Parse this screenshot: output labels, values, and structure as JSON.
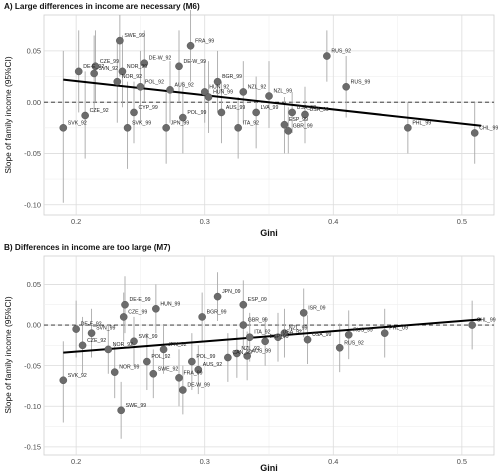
{
  "chart_data": [
    {
      "type": "scatter",
      "title": "A) Large differences in income are necessary (M6)",
      "xlabel": "Gini",
      "ylabel": "Slope of family income (95%CI)",
      "xlim": [
        0.175,
        0.525
      ],
      "ylim": [
        -0.11,
        0.085
      ],
      "xticks": [
        0.2,
        0.3,
        0.4,
        0.5
      ],
      "xtick_labels": [
        "0.2",
        "0.3",
        "0.4",
        "0.5"
      ],
      "yticks": [
        -0.1,
        -0.05,
        0.0,
        0.05
      ],
      "ytick_labels": [
        "-0.10",
        "-0.05",
        "0.00",
        "0.05"
      ],
      "reference_line_y": 0,
      "trend_line": {
        "x": [
          0.19,
          0.515
        ],
        "y": [
          0.022,
          -0.023
        ]
      },
      "grid": true,
      "points": [
        {
          "label": "SVK_92",
          "x": 0.19,
          "y": -0.025,
          "lo": -0.098,
          "hi": 0.05
        },
        {
          "label": "DE-E_92",
          "x": 0.202,
          "y": 0.03,
          "lo": -0.01,
          "hi": 0.07
        },
        {
          "label": "CZE_92",
          "x": 0.207,
          "y": -0.013,
          "lo": -0.055,
          "hi": 0.03
        },
        {
          "label": "CZE_99",
          "x": 0.215,
          "y": 0.035,
          "lo": 0.0,
          "hi": 0.07
        },
        {
          "label": "SVN_92",
          "x": 0.214,
          "y": 0.028,
          "lo": -0.01,
          "hi": 0.065
        },
        {
          "label": "NOR_92",
          "x": 0.232,
          "y": 0.02,
          "lo": -0.02,
          "hi": 0.06
        },
        {
          "label": "NOR_99",
          "x": 0.236,
          "y": 0.03,
          "lo": -0.005,
          "hi": 0.065
        },
        {
          "label": "SWE_99",
          "x": 0.234,
          "y": 0.06,
          "lo": 0.025,
          "hi": 0.085
        },
        {
          "label": "SVK_99",
          "x": 0.24,
          "y": -0.025,
          "lo": -0.065,
          "hi": 0.02
        },
        {
          "label": "CYP_99",
          "x": 0.245,
          "y": -0.01,
          "lo": -0.04,
          "hi": 0.02
        },
        {
          "label": "POL_92",
          "x": 0.25,
          "y": 0.015,
          "lo": -0.02,
          "hi": 0.05
        },
        {
          "label": "DE-W_92",
          "x": 0.253,
          "y": 0.038,
          "lo": 0.0,
          "hi": 0.07
        },
        {
          "label": "JPN_99",
          "x": 0.27,
          "y": -0.025,
          "lo": -0.06,
          "hi": 0.01
        },
        {
          "label": "AUS_92",
          "x": 0.273,
          "y": 0.012,
          "lo": -0.02,
          "hi": 0.04
        },
        {
          "label": "DE-W_99",
          "x": 0.28,
          "y": 0.035,
          "lo": 0.0,
          "hi": 0.07
        },
        {
          "label": "POL_99",
          "x": 0.283,
          "y": -0.015,
          "lo": -0.05,
          "hi": 0.02
        },
        {
          "label": "FRA_99",
          "x": 0.289,
          "y": 0.055,
          "lo": 0.02,
          "hi": 0.09
        },
        {
          "label": "HUN_92",
          "x": 0.3,
          "y": 0.01,
          "lo": -0.02,
          "hi": 0.04
        },
        {
          "label": "HUN_99",
          "x": 0.303,
          "y": 0.005,
          "lo": -0.03,
          "hi": 0.04
        },
        {
          "label": "BGR_99",
          "x": 0.31,
          "y": 0.02,
          "lo": -0.01,
          "hi": 0.05
        },
        {
          "label": "AUS_99",
          "x": 0.313,
          "y": -0.01,
          "lo": -0.04,
          "hi": 0.02
        },
        {
          "label": "ITA_92",
          "x": 0.326,
          "y": -0.025,
          "lo": -0.055,
          "hi": 0.005
        },
        {
          "label": "NZL_92",
          "x": 0.33,
          "y": 0.01,
          "lo": -0.02,
          "hi": 0.04
        },
        {
          "label": "LVA_99",
          "x": 0.34,
          "y": -0.01,
          "lo": -0.045,
          "hi": 0.025
        },
        {
          "label": "NZL_99",
          "x": 0.35,
          "y": 0.006,
          "lo": -0.025,
          "hi": 0.04
        },
        {
          "label": "ESP_99",
          "x": 0.362,
          "y": -0.022,
          "lo": -0.05,
          "hi": 0.005
        },
        {
          "label": "GBR_99",
          "x": 0.365,
          "y": -0.028,
          "lo": -0.05,
          "hi": -0.005
        },
        {
          "label": "USA_92",
          "x": 0.368,
          "y": -0.01,
          "lo": -0.03,
          "hi": 0.01
        },
        {
          "label": "USA_99",
          "x": 0.378,
          "y": -0.012,
          "lo": -0.04,
          "hi": 0.015
        },
        {
          "label": "RUS_92",
          "x": 0.395,
          "y": 0.045,
          "lo": 0.02,
          "hi": 0.07
        },
        {
          "label": "RUS_99",
          "x": 0.41,
          "y": 0.015,
          "lo": -0.015,
          "hi": 0.045
        },
        {
          "label": "PHL_99",
          "x": 0.458,
          "y": -0.025,
          "lo": -0.05,
          "hi": 0.0
        },
        {
          "label": "CHL_99",
          "x": 0.51,
          "y": -0.03,
          "lo": -0.06,
          "hi": 0.0
        }
      ]
    },
    {
      "type": "scatter",
      "title": "B) Differences in income are too large (M7)",
      "xlabel": "Gini",
      "ylabel": "Slope of family income (95%CI)",
      "xlim": [
        0.175,
        0.525
      ],
      "ylim": [
        -0.16,
        0.085
      ],
      "xticks": [
        0.2,
        0.3,
        0.4,
        0.5
      ],
      "xtick_labels": [
        "0.2",
        "0.3",
        "0.4",
        "0.5"
      ],
      "yticks": [
        -0.15,
        -0.1,
        -0.05,
        0.0,
        0.05
      ],
      "ytick_labels": [
        "-0.15",
        "-0.10",
        "-0.05",
        "0.00",
        "0.05"
      ],
      "reference_line_y": 0,
      "trend_line": {
        "x": [
          0.19,
          0.515
        ],
        "y": [
          -0.034,
          0.007
        ]
      },
      "grid": true,
      "points": [
        {
          "label": "SVK_92",
          "x": 0.19,
          "y": -0.068,
          "lo": -0.12,
          "hi": -0.02
        },
        {
          "label": "DE-E_92",
          "x": 0.2,
          "y": -0.005,
          "lo": -0.04,
          "hi": 0.03
        },
        {
          "label": "CZE_92",
          "x": 0.205,
          "y": -0.025,
          "lo": -0.06,
          "hi": 0.01
        },
        {
          "label": "SVN_99",
          "x": 0.212,
          "y": -0.01,
          "lo": -0.04,
          "hi": 0.02
        },
        {
          "label": "NOR_92",
          "x": 0.225,
          "y": -0.03,
          "lo": -0.06,
          "hi": 0.0
        },
        {
          "label": "NOR_99",
          "x": 0.23,
          "y": -0.058,
          "lo": -0.09,
          "hi": -0.025
        },
        {
          "label": "SWE_99",
          "x": 0.235,
          "y": -0.105,
          "lo": -0.14,
          "hi": -0.07
        },
        {
          "label": "CZE_99",
          "x": 0.237,
          "y": 0.01,
          "lo": -0.02,
          "hi": 0.04
        },
        {
          "label": "DE-E_99",
          "x": 0.238,
          "y": 0.025,
          "lo": -0.01,
          "hi": 0.06
        },
        {
          "label": "SVK_99",
          "x": 0.245,
          "y": -0.02,
          "lo": -0.05,
          "hi": 0.01
        },
        {
          "label": "POL_92",
          "x": 0.255,
          "y": -0.045,
          "lo": -0.08,
          "hi": -0.01
        },
        {
          "label": "SWE_92",
          "x": 0.26,
          "y": -0.06,
          "lo": -0.09,
          "hi": -0.03
        },
        {
          "label": "HUN_99",
          "x": 0.262,
          "y": 0.02,
          "lo": -0.01,
          "hi": 0.05
        },
        {
          "label": "JPN_92",
          "x": 0.268,
          "y": -0.03,
          "lo": -0.06,
          "hi": 0.0
        },
        {
          "label": "FRA_99",
          "x": 0.28,
          "y": -0.065,
          "lo": -0.1,
          "hi": -0.03
        },
        {
          "label": "DE-W_99",
          "x": 0.283,
          "y": -0.08,
          "lo": -0.11,
          "hi": -0.05
        },
        {
          "label": "POL_99",
          "x": 0.29,
          "y": -0.045,
          "lo": -0.08,
          "hi": -0.01
        },
        {
          "label": "AUS_92",
          "x": 0.295,
          "y": -0.055,
          "lo": -0.085,
          "hi": -0.025
        },
        {
          "label": "BGR_99",
          "x": 0.298,
          "y": 0.01,
          "lo": -0.02,
          "hi": 0.04
        },
        {
          "label": "JPN_09",
          "x": 0.31,
          "y": 0.035,
          "lo": 0.005,
          "hi": 0.065
        },
        {
          "label": "ESP_09",
          "x": 0.33,
          "y": 0.025,
          "lo": -0.005,
          "hi": 0.055
        },
        {
          "label": "GBR_99",
          "x": 0.33,
          "y": 0.0,
          "lo": -0.03,
          "hi": 0.03
        },
        {
          "label": "CAN_99",
          "x": 0.318,
          "y": -0.04,
          "lo": -0.07,
          "hi": -0.01
        },
        {
          "label": "NZL_92",
          "x": 0.325,
          "y": -0.035,
          "lo": -0.065,
          "hi": -0.005
        },
        {
          "label": "AUS_99",
          "x": 0.333,
          "y": -0.038,
          "lo": -0.068,
          "hi": -0.008
        },
        {
          "label": "ITA_92",
          "x": 0.335,
          "y": -0.015,
          "lo": -0.045,
          "hi": 0.015
        },
        {
          "label": "ESP_99",
          "x": 0.347,
          "y": -0.02,
          "lo": -0.05,
          "hi": 0.01
        },
        {
          "label": "USA_92",
          "x": 0.357,
          "y": -0.015,
          "lo": -0.045,
          "hi": 0.015
        },
        {
          "label": "NZL_99",
          "x": 0.362,
          "y": -0.01,
          "lo": -0.04,
          "hi": 0.02
        },
        {
          "label": "ISR_09",
          "x": 0.377,
          "y": 0.015,
          "lo": -0.015,
          "hi": 0.045
        },
        {
          "label": "USA_99",
          "x": 0.38,
          "y": -0.018,
          "lo": -0.048,
          "hi": 0.012
        },
        {
          "label": "RUS_92",
          "x": 0.405,
          "y": -0.028,
          "lo": -0.058,
          "hi": 0.002
        },
        {
          "label": "RUS_99",
          "x": 0.412,
          "y": -0.012,
          "lo": -0.042,
          "hi": 0.018
        },
        {
          "label": "PHL_09",
          "x": 0.44,
          "y": -0.01,
          "lo": -0.04,
          "hi": 0.02
        },
        {
          "label": "CHL_99",
          "x": 0.508,
          "y": 0.0,
          "lo": -0.03,
          "hi": 0.03
        }
      ]
    }
  ]
}
